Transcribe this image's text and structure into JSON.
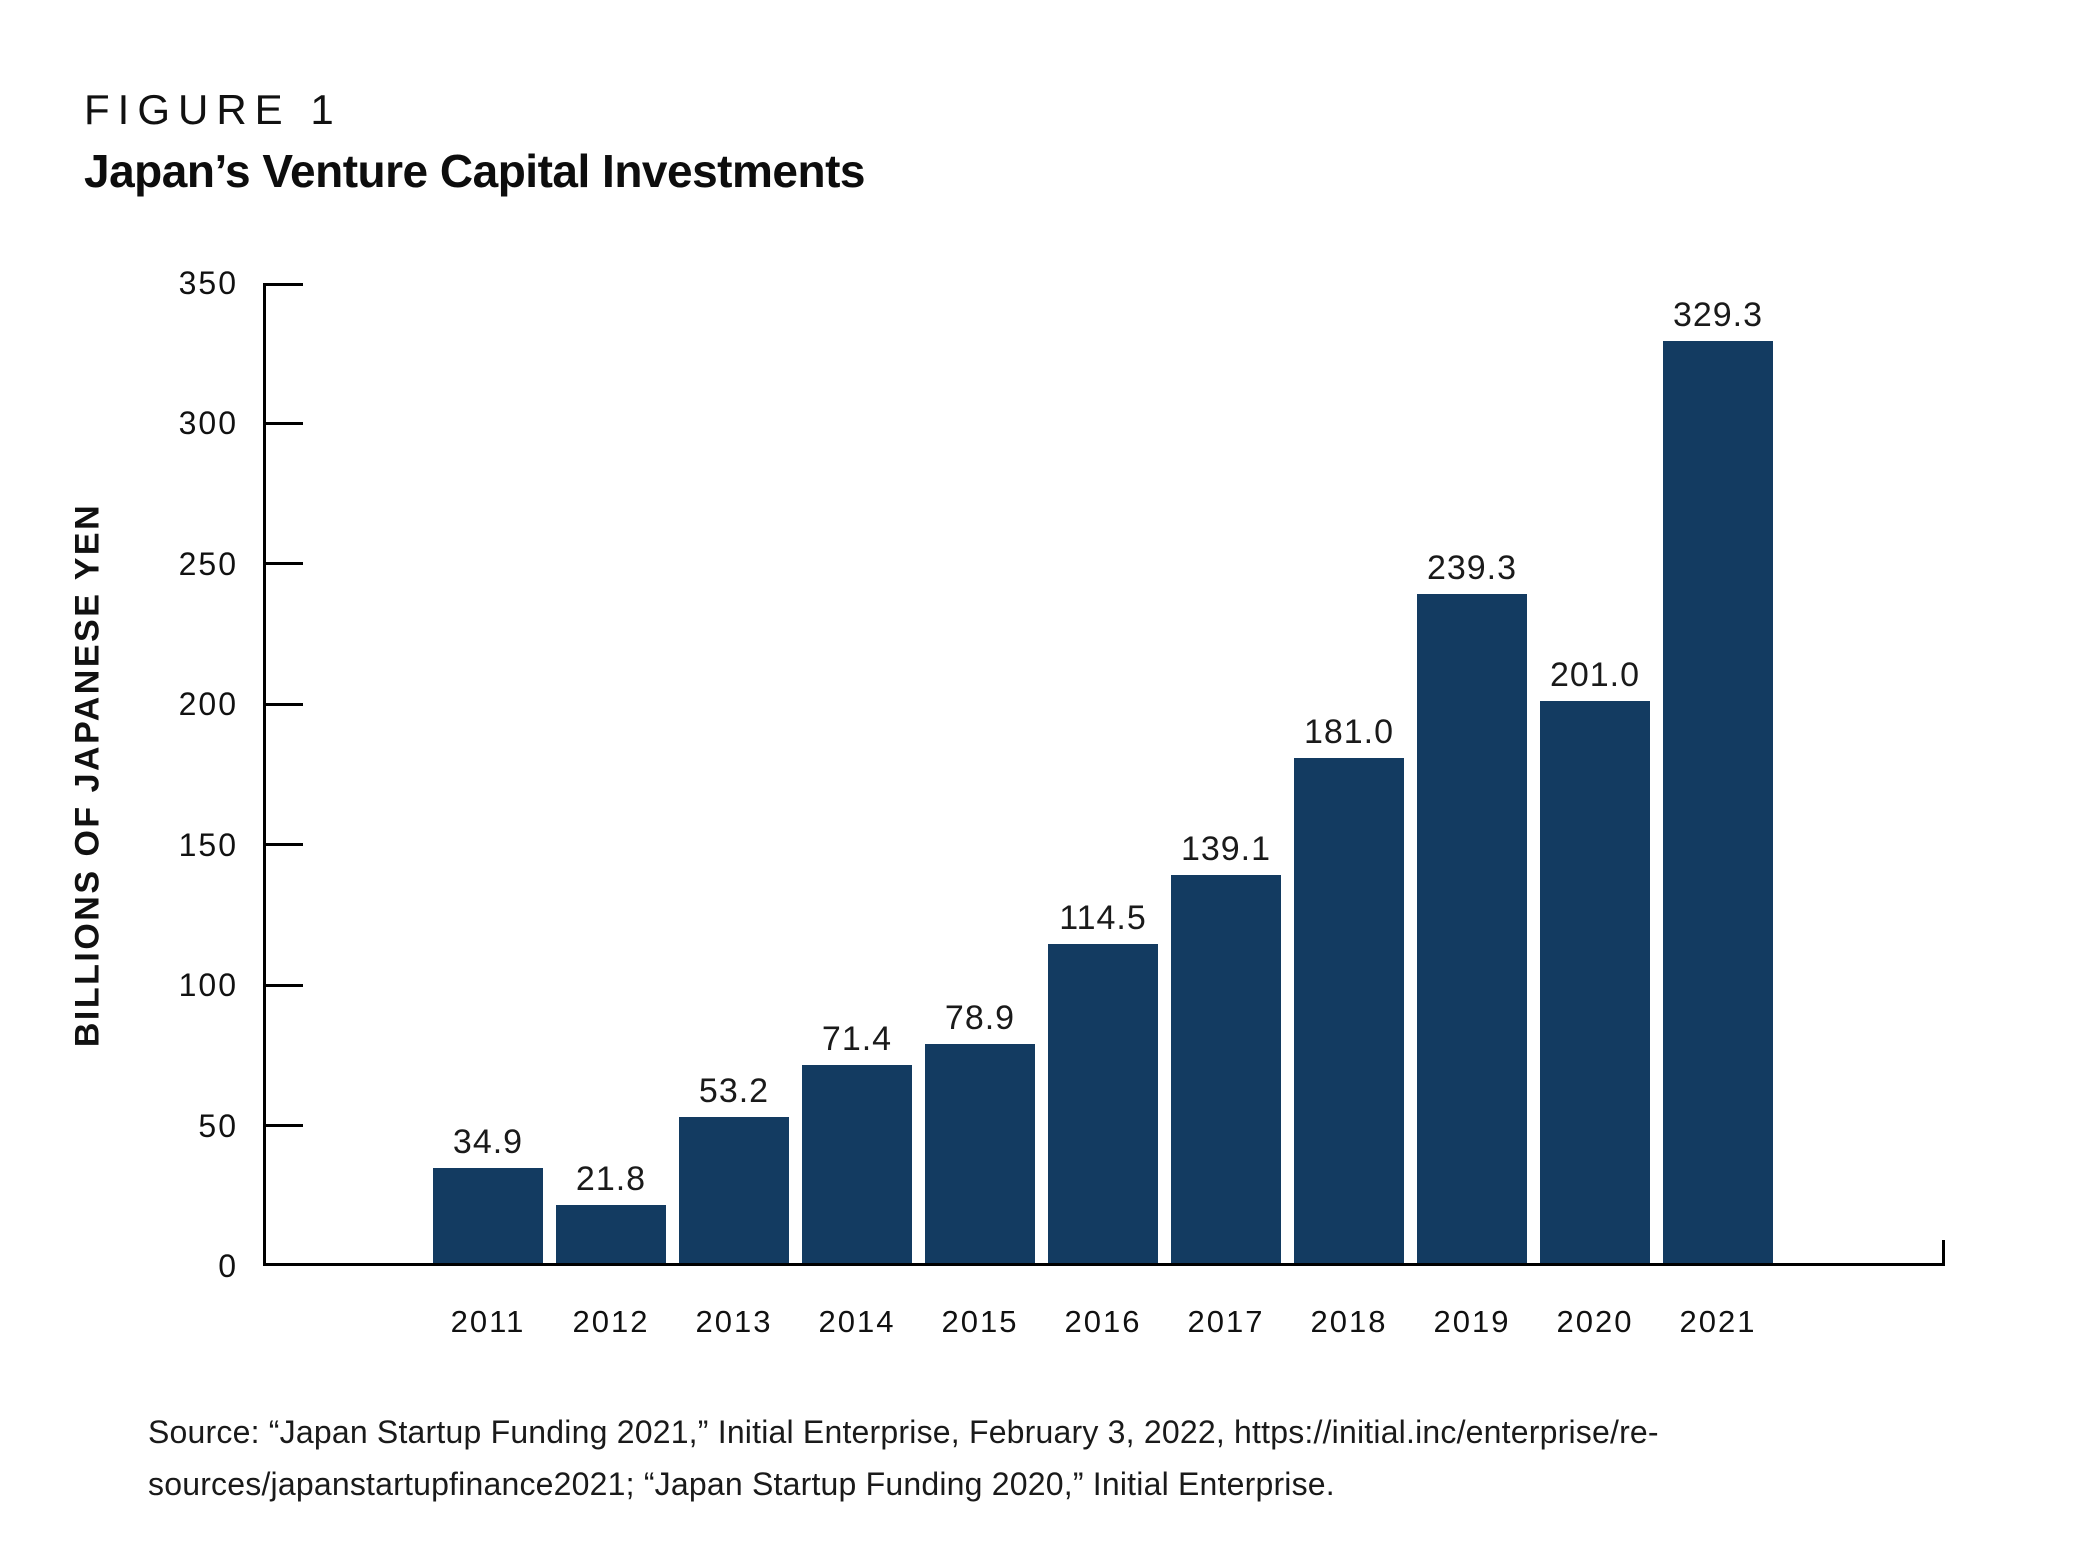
{
  "figure_label": "FIGURE 1",
  "title": "Japan’s Venture Capital Investments",
  "chart_data": {
    "type": "bar",
    "title": "Japan’s Venture Capital Investments",
    "categories": [
      "2011",
      "2012",
      "2013",
      "2014",
      "2015",
      "2016",
      "2017",
      "2018",
      "2019",
      "2020",
      "2021"
    ],
    "values": [
      34.9,
      21.8,
      53.2,
      71.4,
      78.9,
      114.5,
      139.1,
      181.0,
      239.3,
      201.0,
      329.3
    ],
    "value_label_decimals": 1,
    "xlabel": "",
    "ylabel": "BILLIONS OF JAPANESE YEN",
    "ylim": [
      0,
      350
    ],
    "ytick_step": 50,
    "bar_color": "#133B61",
    "axis_color": "#000000",
    "grid": false,
    "legend": false,
    "value_labels": true
  },
  "source": {
    "line1": "Source: “Japan Startup Funding 2021,” Initial Enterprise, February 3, 2022, https://initial.inc/enterprise/re-",
    "line2": "sources/japanstartupfinance2021; “Japan Startup Funding 2020,” Initial Enterprise."
  }
}
